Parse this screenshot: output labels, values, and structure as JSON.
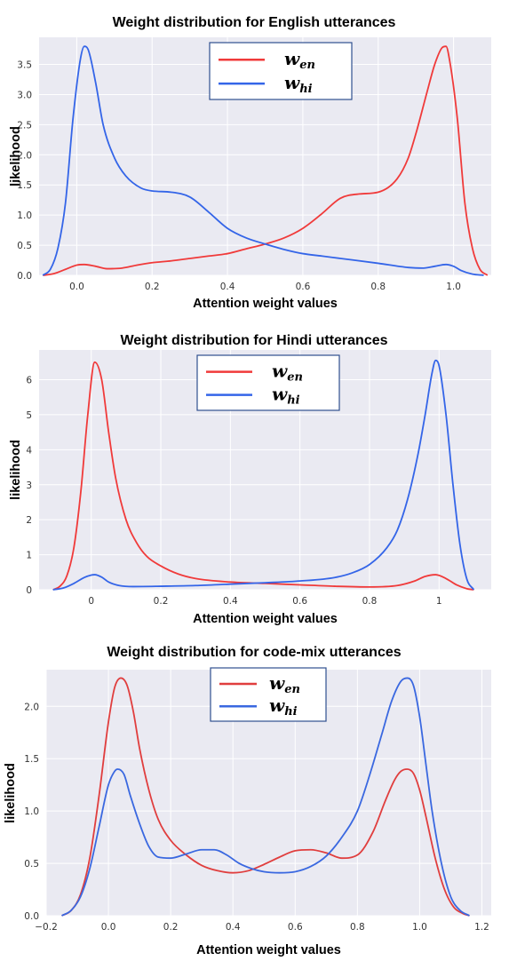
{
  "chart_data": [
    {
      "type": "line",
      "title": "Weight distribution for English utterances",
      "xlabel": "Attention weight values",
      "ylabel": "likelihood",
      "xlim": [
        -0.1,
        1.1
      ],
      "ylim": [
        0,
        3.95
      ],
      "xticks": [
        0.0,
        0.2,
        0.4,
        0.6,
        0.8,
        1.0
      ],
      "xtick_labels": [
        "0.0",
        "0.2",
        "0.4",
        "0.6",
        "0.8",
        "1.0"
      ],
      "yticks": [
        0.0,
        0.5,
        1.0,
        1.5,
        2.0,
        2.5,
        3.0,
        3.5
      ],
      "ytick_labels": [
        "0.0",
        "0.5",
        "1.0",
        "1.5",
        "2.0",
        "2.5",
        "3.0",
        "3.5"
      ],
      "grid": true,
      "legend_position": "top-center",
      "series": [
        {
          "name": "w_en",
          "color": "#f03a3a",
          "x": [
            -0.09,
            -0.06,
            -0.03,
            0.0,
            0.02,
            0.05,
            0.08,
            0.12,
            0.16,
            0.2,
            0.25,
            0.3,
            0.35,
            0.4,
            0.45,
            0.5,
            0.55,
            0.6,
            0.65,
            0.7,
            0.75,
            0.8,
            0.85,
            0.88,
            0.9,
            0.93,
            0.95,
            0.97,
            0.98,
            0.99,
            1.01,
            1.03,
            1.05,
            1.07,
            1.09
          ],
          "y": [
            0.0,
            0.03,
            0.1,
            0.17,
            0.18,
            0.15,
            0.11,
            0.12,
            0.17,
            0.21,
            0.24,
            0.28,
            0.32,
            0.36,
            0.44,
            0.52,
            0.62,
            0.78,
            1.02,
            1.28,
            1.35,
            1.38,
            1.6,
            1.95,
            2.35,
            3.05,
            3.5,
            3.78,
            3.8,
            3.55,
            2.6,
            1.2,
            0.45,
            0.1,
            0.0
          ]
        },
        {
          "name": "w_hi",
          "color": "#3465e8",
          "x": [
            -0.09,
            -0.07,
            -0.05,
            -0.03,
            -0.01,
            0.01,
            0.02,
            0.03,
            0.05,
            0.07,
            0.1,
            0.13,
            0.17,
            0.2,
            0.25,
            0.3,
            0.35,
            0.4,
            0.45,
            0.5,
            0.55,
            0.6,
            0.65,
            0.7,
            0.8,
            0.88,
            0.92,
            0.95,
            0.98,
            1.0,
            1.02,
            1.05,
            1.08
          ],
          "y": [
            0.0,
            0.1,
            0.45,
            1.2,
            2.6,
            3.6,
            3.8,
            3.75,
            3.2,
            2.5,
            1.95,
            1.65,
            1.45,
            1.4,
            1.38,
            1.3,
            1.05,
            0.78,
            0.62,
            0.52,
            0.43,
            0.36,
            0.32,
            0.28,
            0.2,
            0.13,
            0.12,
            0.15,
            0.18,
            0.15,
            0.08,
            0.02,
            0.0
          ]
        }
      ]
    },
    {
      "type": "line",
      "title": "Weight distribution for Hindi utterances",
      "xlabel": "Attention weight values",
      "ylabel": "likelihood",
      "xlim": [
        -0.15,
        1.15
      ],
      "ylim": [
        0,
        6.85
      ],
      "xticks": [
        0.0,
        0.2,
        0.4,
        0.6,
        0.8,
        1.0
      ],
      "xtick_labels": [
        "0",
        "0.2",
        "0.4",
        "0.6",
        "0.8",
        "1"
      ],
      "yticks": [
        0,
        1,
        2,
        3,
        4,
        5,
        6
      ],
      "ytick_labels": [
        "0",
        "1",
        "2",
        "3",
        "4",
        "5",
        "6"
      ],
      "grid": true,
      "legend_position": "top-center",
      "series": [
        {
          "name": "w_en",
          "color": "#f03a3a",
          "x": [
            -0.11,
            -0.09,
            -0.07,
            -0.05,
            -0.03,
            -0.01,
            0.01,
            0.03,
            0.05,
            0.07,
            0.1,
            0.13,
            0.16,
            0.2,
            0.25,
            0.3,
            0.4,
            0.5,
            0.6,
            0.7,
            0.8,
            0.88,
            0.93,
            0.96,
            0.99,
            1.02,
            1.05,
            1.08,
            1.1
          ],
          "y": [
            0.0,
            0.1,
            0.4,
            1.2,
            2.8,
            5.0,
            6.5,
            6.0,
            4.5,
            3.2,
            2.0,
            1.35,
            0.95,
            0.68,
            0.45,
            0.32,
            0.22,
            0.18,
            0.14,
            0.1,
            0.08,
            0.12,
            0.25,
            0.38,
            0.43,
            0.32,
            0.14,
            0.03,
            0.0
          ]
        },
        {
          "name": "w_hi",
          "color": "#3465e8",
          "x": [
            -0.11,
            -0.08,
            -0.05,
            -0.02,
            0.0,
            0.01,
            0.03,
            0.05,
            0.08,
            0.12,
            0.2,
            0.3,
            0.4,
            0.5,
            0.6,
            0.7,
            0.75,
            0.8,
            0.85,
            0.88,
            0.91,
            0.94,
            0.96,
            0.98,
            0.99,
            1.0,
            1.02,
            1.04,
            1.06,
            1.08,
            1.1
          ],
          "y": [
            0.0,
            0.05,
            0.18,
            0.35,
            0.42,
            0.43,
            0.36,
            0.22,
            0.12,
            0.09,
            0.1,
            0.12,
            0.16,
            0.2,
            0.25,
            0.35,
            0.48,
            0.72,
            1.2,
            1.7,
            2.6,
            3.9,
            5.0,
            6.2,
            6.55,
            6.4,
            5.0,
            3.0,
            1.3,
            0.3,
            0.0
          ]
        }
      ]
    },
    {
      "type": "line",
      "title": "Weight distribution for code-mix utterances",
      "xlabel": "Attention weight values",
      "ylabel": "likelihood",
      "xlim": [
        -0.2,
        1.23
      ],
      "ylim": [
        0,
        2.35
      ],
      "xticks": [
        -0.2,
        0.0,
        0.2,
        0.4,
        0.6,
        0.8,
        1.0,
        1.2
      ],
      "xtick_labels": [
        "−0.2",
        "0.0",
        "0.2",
        "0.4",
        "0.6",
        "0.8",
        "1.0",
        "1.2"
      ],
      "yticks": [
        0.0,
        0.5,
        1.0,
        1.5,
        2.0
      ],
      "ytick_labels": [
        "0.0",
        "0.5",
        "1.0",
        "1.5",
        "2.0"
      ],
      "grid": true,
      "legend_position": "top-center",
      "series": [
        {
          "name": "w_en",
          "color": "#e03e3e",
          "x": [
            -0.15,
            -0.12,
            -0.09,
            -0.06,
            -0.03,
            0.0,
            0.02,
            0.04,
            0.06,
            0.08,
            0.1,
            0.13,
            0.16,
            0.2,
            0.25,
            0.3,
            0.35,
            0.4,
            0.45,
            0.5,
            0.55,
            0.6,
            0.65,
            0.7,
            0.75,
            0.8,
            0.85,
            0.89,
            0.92,
            0.94,
            0.96,
            0.98,
            1.0,
            1.02,
            1.05,
            1.08,
            1.11,
            1.14,
            1.16
          ],
          "y": [
            0.0,
            0.05,
            0.2,
            0.55,
            1.15,
            1.85,
            2.18,
            2.27,
            2.2,
            1.95,
            1.6,
            1.2,
            0.92,
            0.72,
            0.58,
            0.48,
            0.43,
            0.41,
            0.43,
            0.49,
            0.56,
            0.62,
            0.63,
            0.6,
            0.55,
            0.58,
            0.8,
            1.1,
            1.3,
            1.38,
            1.4,
            1.36,
            1.2,
            0.95,
            0.55,
            0.25,
            0.08,
            0.02,
            0.0
          ]
        },
        {
          "name": "w_hi",
          "color": "#3a68e0",
          "x": [
            -0.15,
            -0.12,
            -0.09,
            -0.06,
            -0.03,
            0.0,
            0.02,
            0.03,
            0.05,
            0.07,
            0.1,
            0.13,
            0.16,
            0.2,
            0.25,
            0.3,
            0.34,
            0.38,
            0.42,
            0.46,
            0.5,
            0.55,
            0.6,
            0.65,
            0.7,
            0.75,
            0.8,
            0.84,
            0.88,
            0.91,
            0.94,
            0.96,
            0.98,
            1.0,
            1.02,
            1.04,
            1.07,
            1.1,
            1.13,
            1.16
          ],
          "y": [
            0.0,
            0.05,
            0.18,
            0.45,
            0.85,
            1.25,
            1.38,
            1.4,
            1.35,
            1.15,
            0.88,
            0.66,
            0.56,
            0.55,
            0.59,
            0.63,
            0.63,
            0.58,
            0.5,
            0.45,
            0.42,
            0.41,
            0.42,
            0.47,
            0.57,
            0.75,
            1.0,
            1.35,
            1.75,
            2.05,
            2.24,
            2.27,
            2.2,
            1.9,
            1.45,
            1.0,
            0.5,
            0.18,
            0.05,
            0.0
          ]
        }
      ]
    }
  ]
}
